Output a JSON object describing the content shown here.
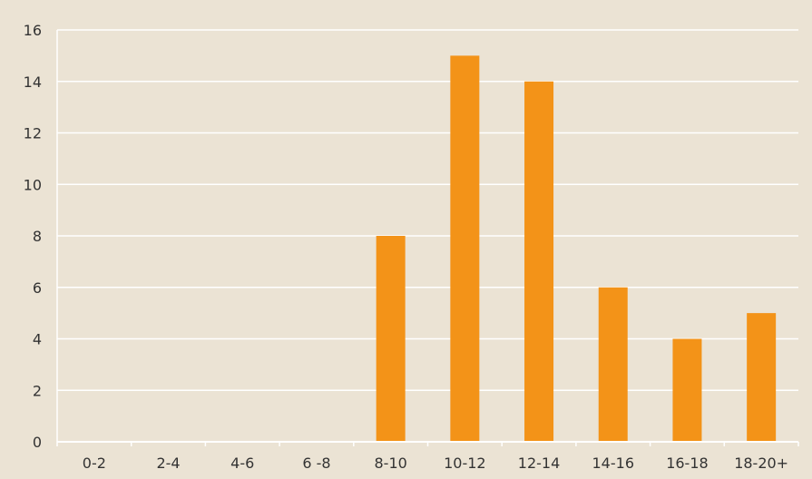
{
  "chart_data": {
    "type": "bar",
    "categories": [
      "0-2",
      "2-4",
      "4-6",
      "6 -8",
      "8-10",
      "10-12",
      "12-14",
      "14-16",
      "16-18",
      "18-20+"
    ],
    "values": [
      0,
      0,
      0,
      0,
      8,
      15,
      14,
      6,
      4,
      5
    ],
    "title": "",
    "xlabel": "",
    "ylabel": "",
    "ylim": [
      0,
      16
    ],
    "yticks": [
      "0",
      "2",
      "4",
      "6",
      "8",
      "10",
      "12",
      "14",
      "16"
    ],
    "grid": true,
    "legend": "none"
  },
  "colors": {
    "background": "#ebe3d4",
    "bar": "#f39318",
    "gridline": "#ffffff",
    "text": "#333333"
  }
}
